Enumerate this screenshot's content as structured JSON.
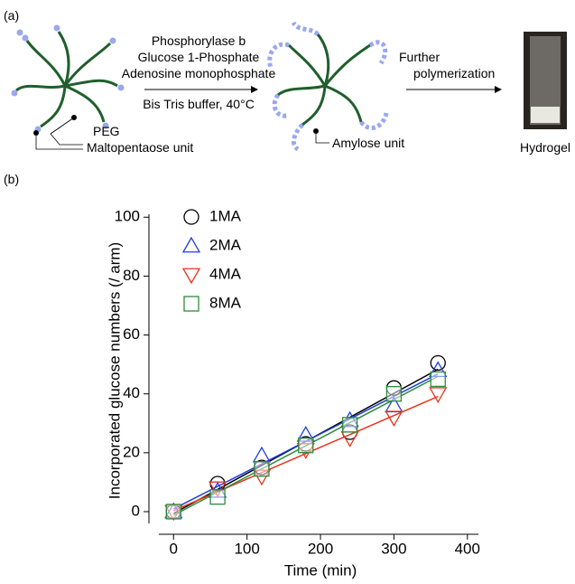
{
  "panel_a": {
    "label": "(a)",
    "conditions": [
      "Phosphorylase b",
      "Glucose 1-Phosphate",
      "Adenosine monophosphate"
    ],
    "buffer": "Bis Tris buffer, 40°C",
    "peg": "PEG",
    "maltopentaose": "Maltopentaose unit",
    "amylose": "Amylose unit",
    "further": "Further",
    "polymerization": "polymerization",
    "hydrogel": "Hydrogel"
  },
  "chart_data": {
    "type": "scatter",
    "panel_label": "(b)",
    "x_label": "Time (min)",
    "y_label": "Incorporated glucose numbers (/ arm)",
    "x": [
      0,
      60,
      120,
      180,
      240,
      300,
      360
    ],
    "series": [
      {
        "name": "1MA",
        "color": "#000000",
        "marker": "circle",
        "values": [
          0,
          9.5,
          15,
          23,
          27,
          42,
          50.5
        ]
      },
      {
        "name": "2MA",
        "color": "#1f3fe0",
        "marker": "triangle-up",
        "values": [
          0,
          7,
          19,
          26,
          31,
          36,
          48
        ]
      },
      {
        "name": "4MA",
        "color": "#e8341c",
        "marker": "triangle-down",
        "values": [
          0,
          8,
          12,
          21,
          25,
          32,
          40
        ]
      },
      {
        "name": "8MA",
        "color": "#2e8b3a",
        "marker": "square",
        "values": [
          0,
          5,
          14.5,
          22.5,
          29.5,
          40,
          45
        ]
      }
    ],
    "xlim": [
      -20,
      415
    ],
    "ylim": [
      -4,
      101
    ],
    "xticks": [
      0,
      100,
      200,
      300,
      400
    ],
    "yticks": [
      0,
      20,
      40,
      60,
      80,
      100
    ],
    "fit_lines": true,
    "legend": "upper-left"
  }
}
